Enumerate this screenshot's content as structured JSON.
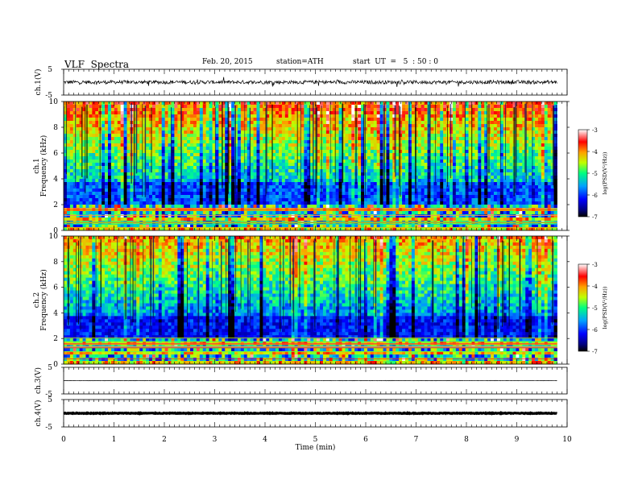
{
  "header": {
    "title": "VLF  Spectra",
    "date": "Feb. 20, 2015",
    "station": "station=ATH",
    "start": "start  UT  =   5  : 50 : 0"
  },
  "chart_data": [
    {
      "type": "line",
      "panel": "ch1-waveform",
      "ylabel": "ch.1(V)",
      "ylim": [
        -5,
        5
      ],
      "yticks": [
        "5",
        "-5"
      ],
      "xlim": [
        0,
        10
      ],
      "note": "broadband waveform, fluctuating around 0 V between about -1.5 and +1.5 V, data from 0 to ~9.8 min"
    },
    {
      "type": "heatmap",
      "panel": "ch1-spectrogram",
      "ylabel": "ch.1\nFrequency (kHz)",
      "ylim": [
        0,
        10
      ],
      "yticks": [
        "0",
        "2",
        "4",
        "6",
        "8",
        "10"
      ],
      "xlim": [
        0,
        9.8
      ],
      "colorbar": {
        "label": "log(PSD(V²/Hz))",
        "range": [
          -7,
          -3
        ],
        "ticks": [
          "-3",
          "-4",
          "-5",
          "-6",
          "-7"
        ]
      }
    },
    {
      "type": "heatmap",
      "panel": "ch2-spectrogram",
      "ylabel": "ch.2\nFrequency (kHz)",
      "ylim": [
        0,
        10
      ],
      "yticks": [
        "0",
        "2",
        "4",
        "6",
        "8",
        "10"
      ],
      "xlim": [
        0,
        9.8
      ],
      "colorbar": {
        "label": "log(PSD(V²/Hz))",
        "range": [
          -7,
          -3
        ],
        "ticks": [
          "-3",
          "-4",
          "-5",
          "-6",
          "-7"
        ]
      }
    },
    {
      "type": "line",
      "panel": "ch3-waveform",
      "ylabel": "ch.3(V)",
      "ylim": [
        -5,
        5
      ],
      "yticks": [
        "5",
        "-5"
      ],
      "xlim": [
        0,
        10
      ],
      "note": "nearly flat trace near 0 V"
    },
    {
      "type": "line",
      "panel": "ch4-waveform",
      "ylabel": "ch.4(V)",
      "ylim": [
        -5,
        5
      ],
      "yticks": [
        "5",
        "-5"
      ],
      "xlim": [
        0,
        10
      ],
      "note": "thick flat band near 0 V"
    }
  ],
  "xaxis": {
    "label": "Time  (min)",
    "ticks": [
      "0",
      "1",
      "2",
      "3",
      "4",
      "5",
      "6",
      "7",
      "8",
      "9",
      "10"
    ],
    "range": [
      0,
      10
    ]
  },
  "colors": {
    "axis": "#000000",
    "trace": "#000000",
    "colormap": [
      "#000000",
      "#0000ff",
      "#00c0ff",
      "#00ff80",
      "#c0ff00",
      "#ff8000",
      "#ff0000",
      "#ffffff"
    ]
  }
}
